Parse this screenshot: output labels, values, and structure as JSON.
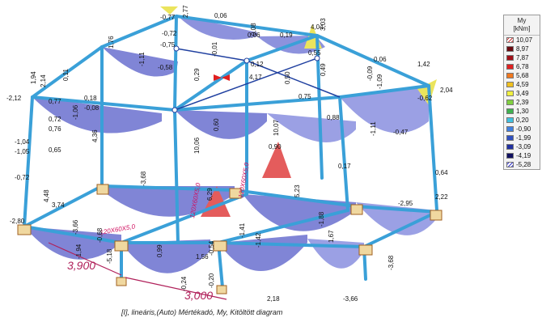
{
  "caption": "[I], lineáris,(Auto) Mértékadó, My, Kitöltött diagram",
  "legend": {
    "title": "My",
    "unit": "[kNm]",
    "rows": [
      {
        "value": "10,07",
        "color": "#c03030",
        "pattern": "hatch-red"
      },
      {
        "value": "8,97",
        "color": "#6a0a10"
      },
      {
        "value": "7,87",
        "color": "#a01018"
      },
      {
        "value": "6,78",
        "color": "#e02020"
      },
      {
        "value": "5,68",
        "color": "#f07820"
      },
      {
        "value": "4,59",
        "color": "#f0c020"
      },
      {
        "value": "3,49",
        "color": "#f0f040"
      },
      {
        "value": "2,39",
        "color": "#80d040"
      },
      {
        "value": "1,30",
        "color": "#40b050"
      },
      {
        "value": "0,20",
        "color": "#40c0e0"
      },
      {
        "value": "-0,90",
        "color": "#4080e0"
      },
      {
        "value": "-1,99",
        "color": "#3050c0"
      },
      {
        "value": "-3,09",
        "color": "#2030a0"
      },
      {
        "value": "-4,19",
        "color": "#101060"
      },
      {
        "value": "-5,28",
        "color": "#3030a0",
        "pattern": "hatch-blue"
      }
    ]
  },
  "dimensions": [
    "3,900",
    "3,000"
  ],
  "sections": [
    "120X60X5,0",
    "120X60X5,0",
    "120X60X5,0"
  ],
  "moment_labels": [
    "-0,77",
    "2,77",
    "0,06",
    "-0,72",
    "0,06",
    "0,08",
    "4,04",
    "3,03",
    "-0,75",
    "0,19",
    "1,76",
    "-1,11",
    "-0,58",
    "-0,01",
    "0,12",
    "0,55",
    "0,06",
    "1,42",
    "1,94",
    "2,14",
    "0,11",
    "0,18",
    "-0,08",
    "0,29",
    "4,17",
    "0,50",
    "0,49",
    "-0,09",
    "-1,09",
    "2,04",
    "-2,12",
    "0,77",
    "-1,06",
    "0,75",
    "-0,62",
    "0,72",
    "0,76",
    "4,36",
    "0,60",
    "10,07",
    "0,88",
    "-1,11",
    "-0,47",
    "-1,04",
    "-1,05",
    "0,65",
    "10,06",
    "0,90",
    "0,17",
    "0,64",
    "-0,72",
    "4,48",
    "-3,68",
    "6,29",
    "5,23",
    "-2,95",
    "2,22",
    "-2,80",
    "3,74",
    "-3,66",
    "0,99",
    "-5,18",
    "-0,68",
    "-0,54",
    "-1,41",
    "-1,42",
    "-1,88",
    "1,67",
    "-3,68",
    "1,56",
    "-0,20",
    "-3,66",
    "2,18",
    "-1,94",
    "-0,24"
  ]
}
